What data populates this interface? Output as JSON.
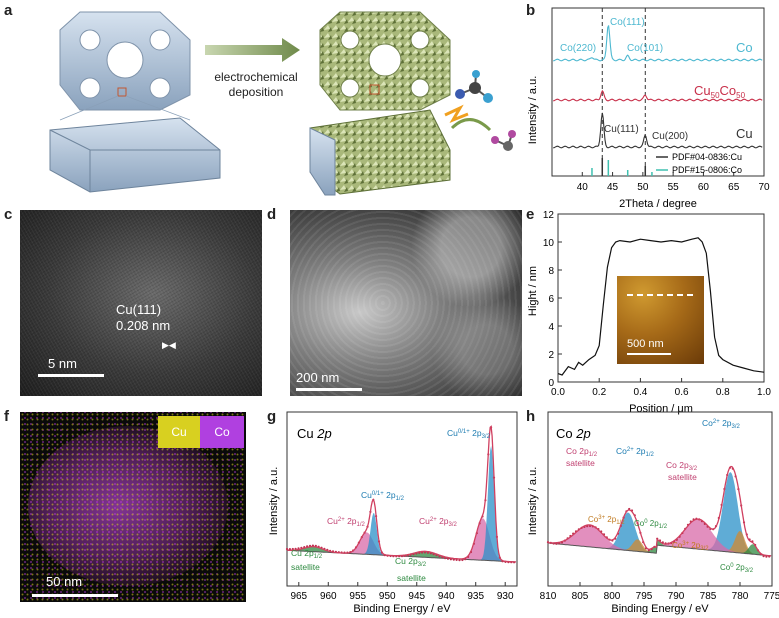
{
  "panel_letters": [
    "a",
    "b",
    "c",
    "d",
    "e",
    "f",
    "g",
    "h"
  ],
  "panel_a": {
    "arrow_label_line1": "electrochemical",
    "arrow_label_line2": "deposition"
  },
  "panel_b": {
    "xlabel": "2Theta / degree",
    "ylabel": "Intensity / a.u.",
    "xticks": [
      "40",
      "45",
      "50",
      "55",
      "60",
      "65",
      "70"
    ],
    "xlim": [
      35,
      70
    ],
    "traces": {
      "co": "Co",
      "cuco_main": "Cu",
      "cuco_sub1": "50",
      "cuco_mid": "Co",
      "cuco_sub2": "50",
      "cu": "Cu"
    },
    "peak_labels": {
      "co220": "Co(220)",
      "co111": "Co(111)",
      "co101": "Co(101)",
      "cu111": "Cu(111)",
      "cu200": "Cu(200)"
    },
    "legend": {
      "cu": "PDF#04-0836:Cu",
      "co": "PDF#15-0806:Co"
    },
    "colors": {
      "co": "#4db8d0",
      "cuco": "#c8304a",
      "cu": "#333333",
      "ref_co": "#3fc0b0"
    }
  },
  "panel_c": {
    "plane": "Cu(111)",
    "spacing": "0.208 nm",
    "scale": "5 nm"
  },
  "panel_d": {
    "scale": "200 nm"
  },
  "chart_data": {
    "type": "line",
    "xlabel": "Position / μm",
    "ylabel": "Hight / nm",
    "xlim": [
      0.0,
      1.0
    ],
    "ylim": [
      0,
      12
    ],
    "xticks": [
      "0.0",
      "0.2",
      "0.4",
      "0.6",
      "0.8",
      "1.0"
    ],
    "yticks": [
      "0",
      "2",
      "4",
      "6",
      "8",
      "10",
      "12"
    ],
    "x": [
      0.0,
      0.02,
      0.05,
      0.08,
      0.1,
      0.12,
      0.15,
      0.18,
      0.2,
      0.22,
      0.24,
      0.26,
      0.28,
      0.3,
      0.35,
      0.4,
      0.45,
      0.5,
      0.55,
      0.6,
      0.65,
      0.68,
      0.7,
      0.72,
      0.74,
      0.76,
      0.78,
      0.8,
      0.85,
      0.9,
      0.95,
      1.0
    ],
    "y": [
      0.6,
      0.5,
      1.1,
      0.9,
      1.4,
      1.2,
      1.6,
      1.9,
      2.6,
      5.5,
      8.2,
      9.6,
      10.0,
      10.1,
      10.0,
      10.2,
      10.1,
      10.0,
      10.1,
      10.0,
      10.2,
      10.3,
      10.0,
      9.2,
      6.5,
      3.2,
      1.9,
      1.6,
      1.2,
      1.0,
      0.8,
      0.7
    ],
    "inset_scale": "500 nm"
  },
  "panel_f": {
    "legend_cu": "Cu",
    "legend_co": "Co",
    "scale": "50 nm",
    "colors": {
      "cu": "#d8d020",
      "co": "#b040e0"
    }
  },
  "panel_g": {
    "title": "Cu ",
    "title_orb": "2p",
    "xlabel": "Binding Energy / eV",
    "ylabel": "Intensity / a.u.",
    "xticks": [
      "965",
      "960",
      "955",
      "950",
      "945",
      "940",
      "935",
      "930"
    ],
    "xlim": [
      967,
      928
    ],
    "labels": {
      "cu01_32_a": "Cu",
      "cu01_32_b": "0/1+",
      "cu01_32_c": " 2p",
      "cu01_32_d": "3/2",
      "cu01_12_a": "Cu",
      "cu01_12_b": "0/1+",
      "cu01_12_c": " 2p",
      "cu01_12_d": "1/2",
      "cu2_12_a": "Cu",
      "cu2_12_b": "2+",
      "cu2_12_c": " 2p",
      "cu2_12_d": "1/2",
      "cu2_32_a": "Cu",
      "cu2_32_b": "2+",
      "cu2_32_c": " 2p",
      "cu2_32_d": "3/2",
      "sat12_a": "Cu 2p",
      "sat12_b": "1/2",
      "sat12_c": "satellite",
      "sat32_a": "Cu 2p",
      "sat32_b": "3/2",
      "sat32_c": "satellite"
    }
  },
  "panel_h": {
    "title": "Co ",
    "title_orb": "2p",
    "xlabel": "Binding Energy / eV",
    "ylabel": "Intensity / a.u.",
    "xticks": [
      "810",
      "805",
      "800",
      "795",
      "790",
      "785",
      "780",
      "775"
    ],
    "xlim": [
      810,
      775
    ],
    "labels": {
      "co2_32_a": "Co",
      "co2_32_b": "2+",
      "co2_32_c": " 2p",
      "co2_32_d": "3/2",
      "co2_12_a": "Co",
      "co2_12_b": "2+",
      "co2_12_c": " 2p",
      "co2_12_d": "1/2",
      "sat12_a": "Co 2p",
      "sat12_b": "1/2",
      "sat12_c": "satellite",
      "sat32_a": "Co 2p",
      "sat32_b": "3/2",
      "sat32_c": "satellite",
      "co3_12_a": "Co",
      "co3_12_b": "3+",
      "co3_12_c": " 2p",
      "co3_12_d": "1/2",
      "co0_12_a": "Co",
      "co0_12_b": "0",
      "co0_12_c": " 2p",
      "co0_12_d": "1/2",
      "co3_32_a": "Co",
      "co3_32_b": "3+",
      "co3_32_c": " 2p",
      "co3_32_d": "3/2",
      "co0_32_a": "Co",
      "co0_32_b": "0",
      "co0_32_c": " 2p",
      "co0_32_d": "3/2"
    }
  }
}
